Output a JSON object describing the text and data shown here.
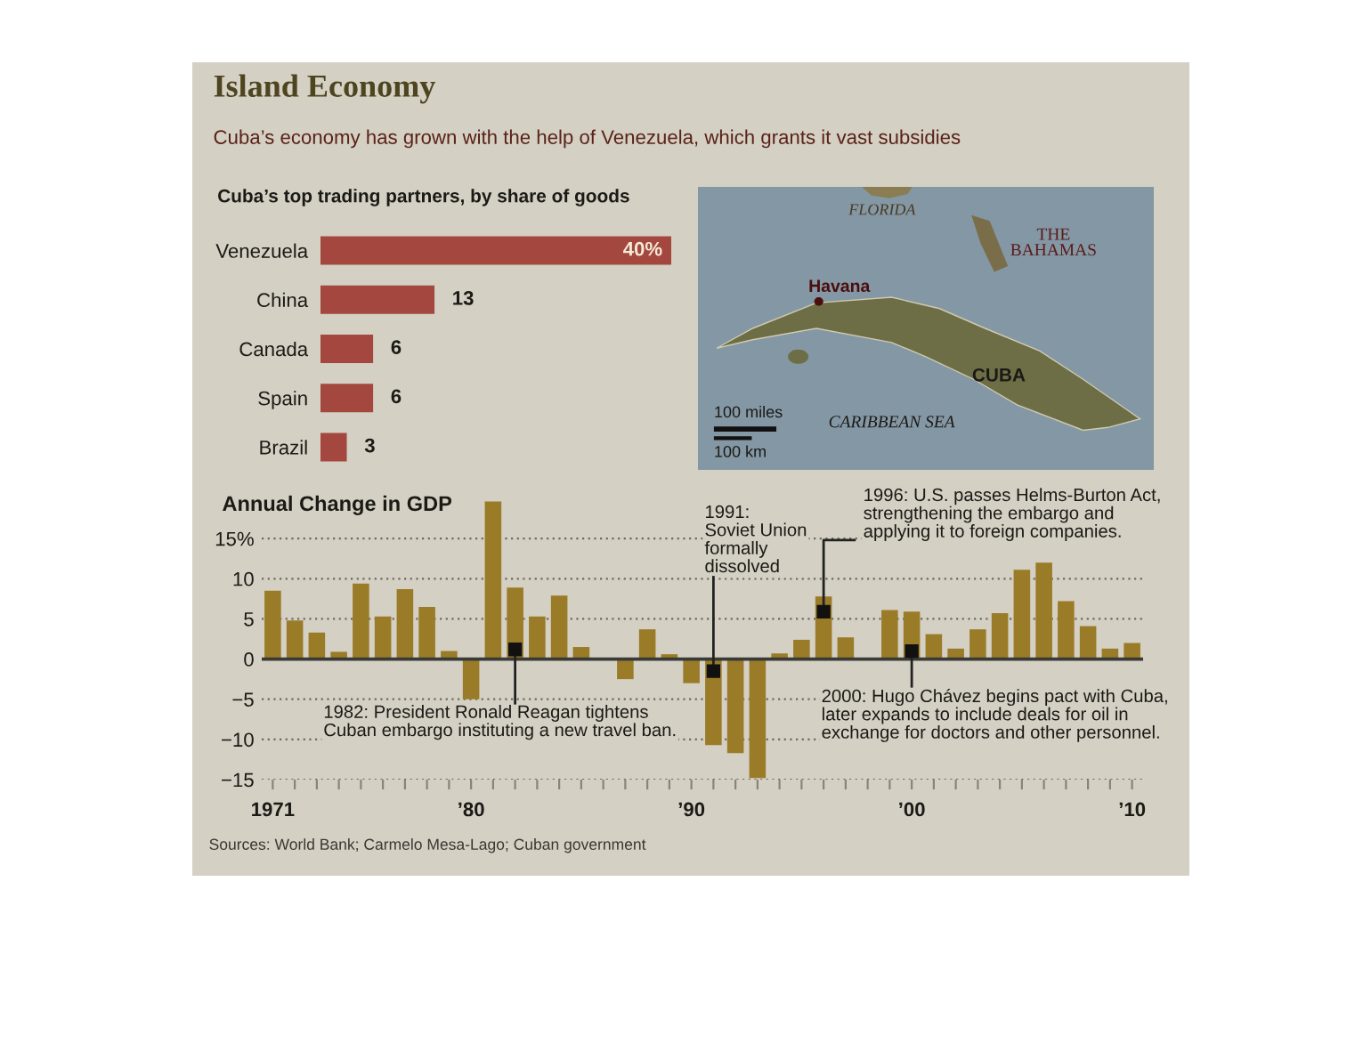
{
  "chart_data": [
    {
      "type": "other",
      "title": "Island Economy",
      "subtitle": "Cuba’s economy has grown with the help of Venezuela, which grants it vast subsidies"
    },
    {
      "type": "bar",
      "orientation": "horizontal",
      "title": "Cuba’s top trading partners, by share of goods",
      "categories": [
        "Venezuela",
        "China",
        "Canada",
        "Spain",
        "Brazil"
      ],
      "values": [
        40,
        13,
        6,
        6,
        3
      ],
      "value_labels": [
        "40%",
        "13",
        "6",
        "6",
        "3"
      ],
      "color": "#a4473f"
    },
    {
      "type": "other",
      "annotations": [
        "FLORIDA",
        "THE\nBAHAMAS",
        "Havana",
        "CUBA",
        "CARIBBEAN SEA",
        "100 miles",
        "100 km"
      ]
    },
    {
      "type": "bar",
      "title": "Annual Change in GDP",
      "x": [
        1971,
        1972,
        1973,
        1974,
        1975,
        1976,
        1977,
        1978,
        1979,
        1980,
        1981,
        1982,
        1983,
        1984,
        1985,
        1986,
        1987,
        1988,
        1989,
        1990,
        1991,
        1992,
        1993,
        1994,
        1995,
        1996,
        1997,
        1998,
        1999,
        2000,
        2001,
        2002,
        2003,
        2004,
        2005,
        2006,
        2007,
        2008,
        2009,
        2010
      ],
      "values": [
        8.5,
        4.8,
        3.3,
        0.9,
        9.4,
        5.3,
        8.7,
        6.5,
        1.0,
        -5.0,
        19.6,
        8.9,
        5.3,
        7.9,
        1.5,
        null,
        -2.5,
        3.7,
        0.6,
        -3.0,
        -10.7,
        -11.7,
        -14.8,
        0.7,
        2.4,
        7.8,
        2.7,
        null,
        6.1,
        5.9,
        3.1,
        1.3,
        3.7,
        5.7,
        11.1,
        12.0,
        7.2,
        4.1,
        1.3,
        2.0
      ],
      "color": "#9a7b27",
      "xlim": [
        1970.5,
        2010.5
      ],
      "xticks": [
        {
          "value": 1971,
          "label": "1971"
        },
        {
          "value": 1972,
          "label": null
        },
        {
          "value": 1973,
          "label": null
        },
        {
          "value": 1974,
          "label": null
        },
        {
          "value": 1975,
          "label": null
        },
        {
          "value": 1976,
          "label": null
        },
        {
          "value": 1977,
          "label": null
        },
        {
          "value": 1978,
          "label": null
        },
        {
          "value": 1979,
          "label": null
        },
        {
          "value": 1980,
          "label": "’80"
        },
        {
          "value": 1981,
          "label": null
        },
        {
          "value": 1982,
          "label": null
        },
        {
          "value": 1983,
          "label": null
        },
        {
          "value": 1984,
          "label": null
        },
        {
          "value": 1985,
          "label": null
        },
        {
          "value": 1986,
          "label": null
        },
        {
          "value": 1987,
          "label": null
        },
        {
          "value": 1988,
          "label": null
        },
        {
          "value": 1989,
          "label": null
        },
        {
          "value": 1990,
          "label": "’90"
        },
        {
          "value": 1991,
          "label": null
        },
        {
          "value": 1992,
          "label": null
        },
        {
          "value": 1993,
          "label": null
        },
        {
          "value": 1994,
          "label": null
        },
        {
          "value": 1995,
          "label": null
        },
        {
          "value": 1996,
          "label": null
        },
        {
          "value": 1997,
          "label": null
        },
        {
          "value": 1998,
          "label": null
        },
        {
          "value": 1999,
          "label": null
        },
        {
          "value": 2000,
          "label": "’00"
        },
        {
          "value": 2001,
          "label": null
        },
        {
          "value": 2002,
          "label": null
        },
        {
          "value": 2003,
          "label": null
        },
        {
          "value": 2004,
          "label": null
        },
        {
          "value": 2005,
          "label": null
        },
        {
          "value": 2006,
          "label": null
        },
        {
          "value": 2007,
          "label": null
        },
        {
          "value": 2008,
          "label": null
        },
        {
          "value": 2009,
          "label": null
        },
        {
          "value": 2010,
          "label": "’10"
        }
      ],
      "ylim": [
        -15,
        20
      ],
      "yticks": [
        {
          "value": 15,
          "label": "15%"
        },
        10,
        5,
        0,
        {
          "value": -5,
          "label": "−5"
        },
        {
          "value": -10,
          "label": "−10"
        },
        {
          "value": -15,
          "label": "−15"
        }
      ],
      "grid": "y",
      "ref_lines": [
        {
          "axis": "y",
          "value": 0,
          "color": "#3a3a36"
        }
      ],
      "annotations": [
        {
          "text": "1982: President Ronald Reagan tightens\nCuban embargo instituting a new travel ban.",
          "x": 1982,
          "y": 1.2
        },
        {
          "text": "1991:\nSoviet Union\nformally\ndissolved",
          "x": 1991,
          "y": -1.5
        },
        {
          "text": "1996: U.S. passes Helms-Burton Act,\nstrengthening the embargo and\napplying it to foreign companies.",
          "x": 1996,
          "y": 5.9
        },
        {
          "text": "2000: Hugo Chávez begins pact with Cuba,\nlater expands to include deals for oil in\nexchange for doctors and other personnel.",
          "x": 2000,
          "y": 1.0
        },
        "Sources: World Bank; Carmelo Mesa-Lago; Cuban government"
      ]
    }
  ]
}
